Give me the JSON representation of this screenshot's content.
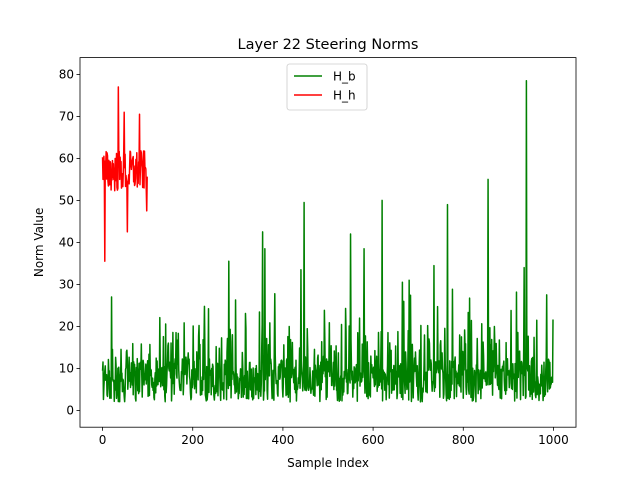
{
  "chart_data": {
    "type": "line",
    "title": "Layer 22 Steering Norms",
    "xlabel": "Sample Index",
    "ylabel": "Norm Value",
    "xlim": [
      -50,
      1050
    ],
    "ylim": [
      -4,
      84
    ],
    "xticks": [
      0,
      200,
      400,
      600,
      800,
      1000
    ],
    "yticks": [
      0,
      10,
      20,
      30,
      40,
      50,
      60,
      70,
      80
    ],
    "grid": false,
    "legend_position": "top-center",
    "series": [
      {
        "name": "H_b",
        "color": "#008000",
        "n_points": 1000,
        "peaks": [
          {
            "x": 20,
            "y": 27
          },
          {
            "x": 280,
            "y": 35.5
          },
          {
            "x": 355,
            "y": 42.5
          },
          {
            "x": 360,
            "y": 38.5
          },
          {
            "x": 440,
            "y": 33.5
          },
          {
            "x": 447,
            "y": 49.5
          },
          {
            "x": 550,
            "y": 42
          },
          {
            "x": 580,
            "y": 38.5
          },
          {
            "x": 620,
            "y": 50
          },
          {
            "x": 665,
            "y": 30.5
          },
          {
            "x": 680,
            "y": 31
          },
          {
            "x": 765,
            "y": 49
          },
          {
            "x": 855,
            "y": 55
          },
          {
            "x": 935,
            "y": 34
          },
          {
            "x": 940,
            "y": 78.5
          },
          {
            "x": 985,
            "y": 27.5
          }
        ]
      },
      {
        "name": "H_h",
        "color": "#ff0000",
        "n_points": 100,
        "peaks": [
          {
            "x": 5,
            "y": 35.5
          },
          {
            "x": 35,
            "y": 77
          },
          {
            "x": 48,
            "y": 71
          },
          {
            "x": 55,
            "y": 42.5
          },
          {
            "x": 82,
            "y": 70.5
          },
          {
            "x": 98,
            "y": 47.5
          }
        ]
      }
    ]
  }
}
